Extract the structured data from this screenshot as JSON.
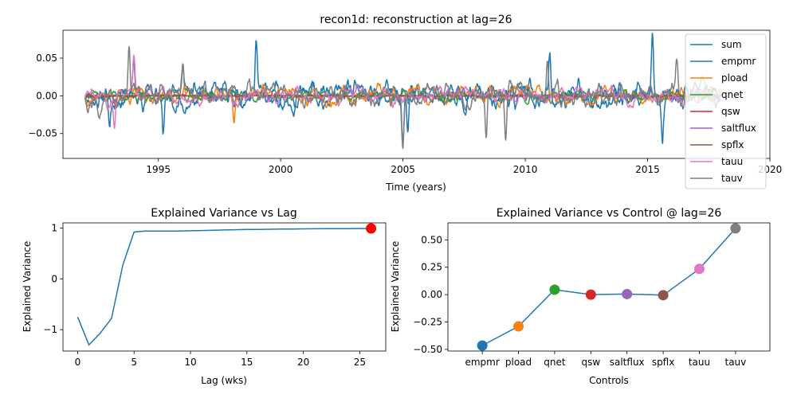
{
  "chart_data": [
    {
      "type": "line",
      "title": "recon1d: reconstruction at lag=26",
      "xlabel": "Time (years)",
      "ylabel": "",
      "xlim": [
        1991.1,
        2020
      ],
      "ylim": [
        -0.083,
        0.087
      ],
      "xticks": [
        1995,
        2000,
        2005,
        2010,
        2015,
        2020
      ],
      "yticks": [
        -0.05,
        0.0,
        0.05
      ],
      "ytick_labels": [
        "−0.05",
        "0.00",
        "0.05"
      ],
      "x_start": 1992.0,
      "x_step": 0.0192,
      "legend_position": "top-right",
      "series": [
        {
          "name": "sum",
          "color": "#1f77b4",
          "amplitude": 0.022,
          "seed": 11,
          "spikes": [
            [
              1994.0,
              0.048
            ],
            [
              1996.0,
              0.052
            ],
            [
              1999.0,
              0.06
            ],
            [
              2005.0,
              -0.072
            ],
            [
              2005.2,
              -0.06
            ],
            [
              2011.0,
              0.052
            ],
            [
              2015.2,
              0.082
            ],
            [
              2015.6,
              -0.062
            ],
            [
              1993.0,
              -0.04
            ],
            [
              1995.2,
              -0.062
            ]
          ]
        },
        {
          "name": "empmr",
          "color": "#1f77b4",
          "amplitude": 0.018,
          "seed": 23,
          "spikes": []
        },
        {
          "name": "pload",
          "color": "#ff7f0e",
          "amplitude": 0.015,
          "seed": 37,
          "spikes": [
            [
              1998.1,
              -0.035
            ],
            [
              2004.5,
              -0.03
            ]
          ]
        },
        {
          "name": "qnet",
          "color": "#2ca02c",
          "amplitude": 0.008,
          "seed": 41,
          "spikes": []
        },
        {
          "name": "qsw",
          "color": "#d62728",
          "amplitude": 0.0015,
          "seed": 53,
          "spikes": []
        },
        {
          "name": "saltflux",
          "color": "#9467bd",
          "amplitude": 0.0015,
          "seed": 61,
          "spikes": []
        },
        {
          "name": "spflx",
          "color": "#8c564b",
          "amplitude": 0.0015,
          "seed": 71,
          "spikes": []
        },
        {
          "name": "tauu",
          "color": "#e377c2",
          "amplitude": 0.014,
          "seed": 83,
          "spikes": [
            [
              1994.0,
              0.045
            ],
            [
              1993.2,
              -0.035
            ]
          ]
        },
        {
          "name": "tauv",
          "color": "#7f7f7f",
          "amplitude": 0.02,
          "seed": 97,
          "spikes": [
            [
              1993.8,
              0.066
            ],
            [
              1996.0,
              0.046
            ],
            [
              2005.0,
              -0.062
            ],
            [
              2010.9,
              0.06
            ],
            [
              2009.2,
              -0.062
            ],
            [
              2008.4,
              -0.058
            ],
            [
              2016.2,
              0.045
            ]
          ]
        }
      ]
    },
    {
      "type": "line",
      "title": "Explained Variance vs Lag",
      "xlabel": "Lag (wks)",
      "ylabel": "Explained Variance",
      "xlim": [
        -1.3,
        27.3
      ],
      "ylim": [
        -1.42,
        1.1
      ],
      "xticks": [
        0,
        5,
        10,
        15,
        20,
        25
      ],
      "yticks": [
        -1,
        0,
        1
      ],
      "ytick_labels": [
        "−1",
        "0",
        "1"
      ],
      "x": [
        0,
        1,
        2,
        3,
        4,
        5,
        6,
        7,
        8,
        9,
        10,
        11,
        12,
        13,
        14,
        15,
        16,
        17,
        18,
        19,
        20,
        21,
        22,
        23,
        24,
        25,
        26
      ],
      "y": [
        -0.75,
        -1.3,
        -1.07,
        -0.78,
        0.27,
        0.92,
        0.94,
        0.94,
        0.94,
        0.94,
        0.945,
        0.95,
        0.955,
        0.96,
        0.965,
        0.97,
        0.972,
        0.975,
        0.978,
        0.98,
        0.982,
        0.984,
        0.986,
        0.987,
        0.988,
        0.989,
        0.99
      ],
      "line_color": "#1f77b4",
      "highlight": {
        "x": 26,
        "y": 0.99,
        "color": "#ff0000"
      }
    },
    {
      "type": "line",
      "title": "Explained Variance vs Control @ lag=26",
      "xlabel": "Controls",
      "ylabel": "Explained Variance",
      "ylim": [
        -0.515,
        0.655
      ],
      "yticks": [
        -0.5,
        -0.25,
        0.0,
        0.25,
        0.5
      ],
      "ytick_labels": [
        "−0.50",
        "−0.25",
        "0.00",
        "0.25",
        "0.50"
      ],
      "categories": [
        "empmr",
        "pload",
        "qnet",
        "qsw",
        "saltflux",
        "spflx",
        "tauu",
        "tauv"
      ],
      "values": [
        -0.465,
        -0.29,
        0.045,
        0.0,
        0.005,
        -0.005,
        0.235,
        0.605
      ],
      "line_color": "#1f77b4",
      "point_colors": [
        "#1f77b4",
        "#ff7f0e",
        "#2ca02c",
        "#d62728",
        "#9467bd",
        "#8c564b",
        "#e377c2",
        "#7f7f7f"
      ]
    }
  ]
}
